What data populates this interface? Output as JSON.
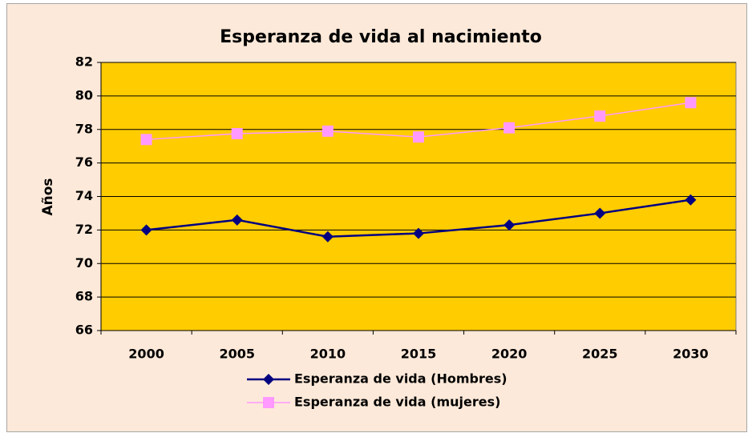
{
  "chart_data": {
    "type": "line",
    "title": "Esperanza de vida al nacimiento",
    "y_label": "Años",
    "categories": [
      "2000",
      "2005",
      "2010",
      "2015",
      "2020",
      "2025",
      "2030"
    ],
    "series": [
      {
        "name": "Esperanza de vida (Hombres)",
        "color": "#000080",
        "marker": "diamond",
        "values": [
          72.0,
          72.6,
          71.6,
          71.8,
          72.3,
          73.0,
          73.8
        ]
      },
      {
        "name": "Esperanza de vida (mujeres)",
        "color": "#ff99ff",
        "marker": "square",
        "values": [
          77.4,
          77.75,
          77.9,
          77.55,
          78.1,
          78.8,
          79.6
        ]
      }
    ],
    "ylim": [
      66,
      82
    ],
    "yticks": [
      66,
      68,
      70,
      72,
      74,
      76,
      78,
      80,
      82
    ],
    "grid": true,
    "plot_background": "#ffcc00",
    "background": "#fde9d9",
    "legend": "bottom"
  }
}
